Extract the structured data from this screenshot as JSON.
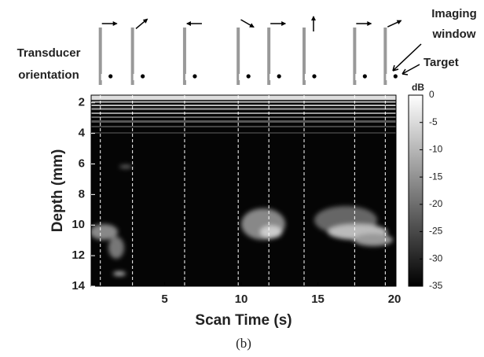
{
  "chart_data": {
    "type": "mmode",
    "x_label": "Scan Time (s)",
    "y_label": "Depth (mm)",
    "xlim": [
      0.2,
      20.1
    ],
    "xticks": [
      5,
      10,
      15,
      20
    ],
    "ylim": [
      1.5,
      14
    ],
    "yticks": [
      2,
      4,
      6,
      8,
      10,
      12,
      14
    ],
    "clim": [
      -35,
      0
    ],
    "cticks": [
      0,
      -5,
      -10,
      -15,
      -20,
      -25,
      -30,
      -35
    ],
    "colorbar_label": "dB",
    "events": [
      0.8,
      2.9,
      6.3,
      9.8,
      11.8,
      14.1,
      17.4,
      19.4
    ],
    "annotations": {
      "orientation": [
        "Transducer",
        "orientation"
      ],
      "window": [
        "Imaging",
        "window"
      ],
      "target": "Target"
    },
    "caption": "(b)"
  }
}
